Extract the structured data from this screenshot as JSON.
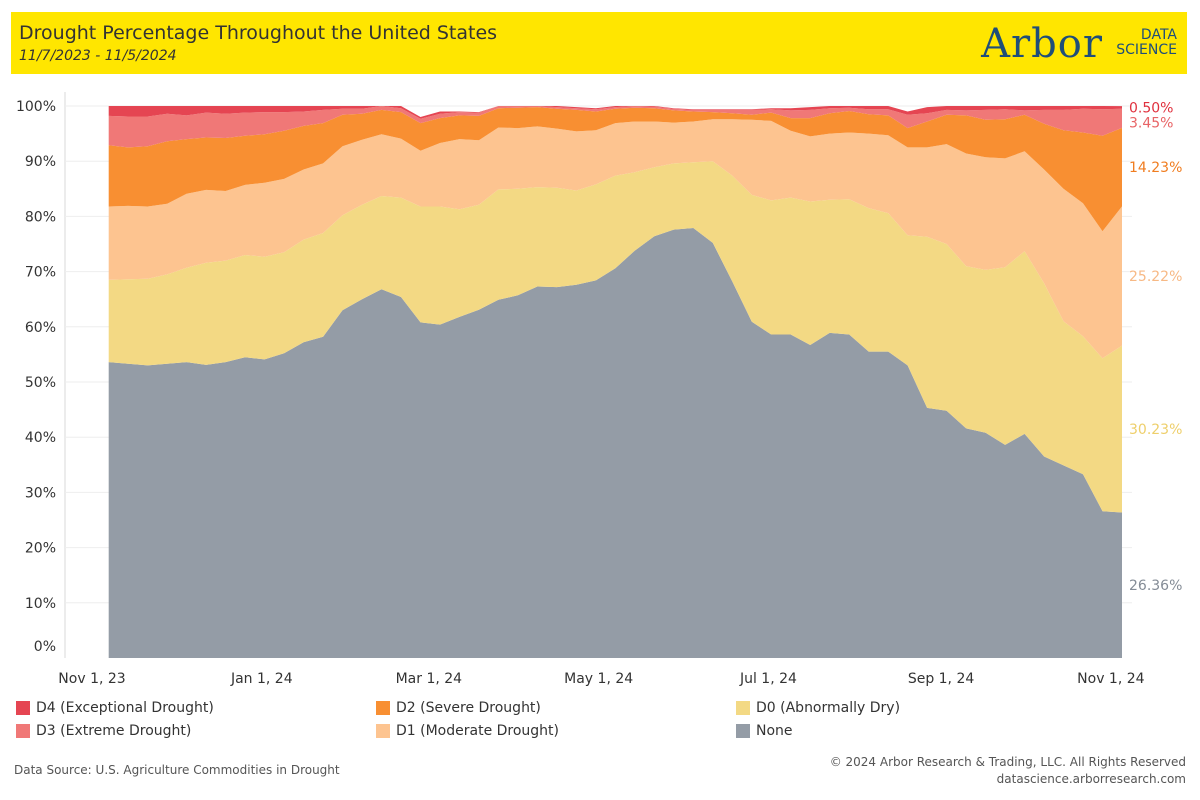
{
  "header": {
    "title": "Drought Percentage Throughout the United States",
    "subtitle": "11/7/2023 - 11/5/2024",
    "logo_main": "Arbor",
    "logo_line1": "DATA",
    "logo_line2": "SCIENCE",
    "background_color": "#ffe600"
  },
  "chart_data": {
    "type": "area",
    "stacked": true,
    "title": "Drought Percentage Throughout the United States",
    "xlabel": "",
    "ylabel": "",
    "ylim": [
      0,
      100
    ],
    "x_range": [
      "2023-11-01",
      "2024-11-05"
    ],
    "x_ticks": [
      {
        "label": "Nov 1, 23",
        "date": "2023-11-01"
      },
      {
        "label": "Jan 1, 24",
        "date": "2024-01-01"
      },
      {
        "label": "Mar 1, 24",
        "date": "2024-03-01"
      },
      {
        "label": "May 1, 24",
        "date": "2024-05-01"
      },
      {
        "label": "Jul 1, 24",
        "date": "2024-07-01"
      },
      {
        "label": "Sep 1, 24",
        "date": "2024-09-01"
      },
      {
        "label": "Nov 1, 24",
        "date": "2024-11-01"
      }
    ],
    "y_ticks": [
      "0%",
      "10%",
      "20%",
      "30%",
      "40%",
      "50%",
      "60%",
      "70%",
      "80%",
      "90%",
      "100%"
    ],
    "grid": true,
    "legend_position": "bottom",
    "x": [
      "2023-11-07",
      "2023-11-14",
      "2023-11-21",
      "2023-11-28",
      "2023-12-05",
      "2023-12-12",
      "2023-12-19",
      "2023-12-26",
      "2024-01-02",
      "2024-01-09",
      "2024-01-16",
      "2024-01-23",
      "2024-01-30",
      "2024-02-06",
      "2024-02-13",
      "2024-02-20",
      "2024-02-27",
      "2024-03-05",
      "2024-03-12",
      "2024-03-19",
      "2024-03-26",
      "2024-04-02",
      "2024-04-09",
      "2024-04-16",
      "2024-04-23",
      "2024-04-30",
      "2024-05-07",
      "2024-05-14",
      "2024-05-21",
      "2024-05-28",
      "2024-06-04",
      "2024-06-11",
      "2024-06-18",
      "2024-06-25",
      "2024-07-02",
      "2024-07-09",
      "2024-07-16",
      "2024-07-23",
      "2024-07-30",
      "2024-08-06",
      "2024-08-13",
      "2024-08-20",
      "2024-08-27",
      "2024-09-03",
      "2024-09-10",
      "2024-09-17",
      "2024-09-24",
      "2024-10-01",
      "2024-10-08",
      "2024-10-15",
      "2024-10-22",
      "2024-10-29",
      "2024-11-05"
    ],
    "series": [
      {
        "name": "None",
        "color": "#949ca6",
        "values": [
          53.6,
          53.3,
          53.0,
          53.3,
          53.6,
          53.1,
          53.6,
          54.5,
          54.1,
          55.2,
          57.2,
          58.2,
          63.0,
          65.0,
          66.8,
          65.4,
          60.8,
          60.4,
          61.8,
          63.1,
          64.9,
          65.7,
          67.3,
          67.2,
          67.6,
          68.4,
          70.6,
          73.8,
          76.4,
          77.6,
          77.9,
          75.2,
          68.2,
          60.9,
          58.6,
          58.6,
          56.7,
          58.9,
          58.6,
          55.5,
          55.5,
          53.0,
          45.3,
          44.8,
          41.6,
          40.8,
          38.6,
          40.6,
          36.5,
          34.9,
          33.3,
          26.6,
          26.36
        ]
      },
      {
        "name": "D0 (Abnormally Dry)",
        "color": "#f3d984",
        "values": [
          14.9,
          15.3,
          15.7,
          16.2,
          17.1,
          18.5,
          18.4,
          18.5,
          18.6,
          18.3,
          18.6,
          18.8,
          17.2,
          17.1,
          16.9,
          18.0,
          21.0,
          21.4,
          19.5,
          19.0,
          20.0,
          19.3,
          18.0,
          18.0,
          17.1,
          17.4,
          16.8,
          14.2,
          12.5,
          12.0,
          11.9,
          14.8,
          19.2,
          23.0,
          24.3,
          24.8,
          26.0,
          24.1,
          24.5,
          26.0,
          25.1,
          23.6,
          31.0,
          30.2,
          29.4,
          29.5,
          32.2,
          33.1,
          31.4,
          26.1,
          25.0,
          27.7,
          30.23
        ]
      },
      {
        "name": "D1 (Moderate Drought)",
        "color": "#fdc490",
        "values": [
          13.3,
          13.3,
          13.1,
          12.8,
          13.4,
          13.2,
          12.6,
          12.7,
          13.4,
          13.3,
          12.7,
          12.6,
          12.5,
          11.8,
          11.2,
          10.7,
          10.1,
          11.5,
          12.7,
          11.7,
          11.2,
          11.0,
          11.0,
          10.7,
          10.7,
          9.8,
          9.5,
          9.2,
          8.3,
          7.4,
          7.4,
          7.6,
          10.2,
          13.6,
          14.4,
          12.1,
          11.8,
          12.0,
          12.1,
          13.5,
          14.1,
          15.9,
          16.2,
          18.1,
          20.4,
          20.4,
          19.7,
          18.1,
          20.6,
          24.0,
          24.1,
          23.0,
          25.22
        ]
      },
      {
        "name": "D2 (Severe Drought)",
        "color": "#f88f32",
        "values": [
          11.1,
          10.6,
          10.9,
          11.3,
          9.9,
          9.5,
          9.6,
          8.9,
          8.8,
          8.7,
          7.9,
          7.3,
          5.7,
          4.7,
          4.4,
          4.8,
          5.0,
          4.5,
          4.3,
          4.4,
          3.5,
          3.7,
          3.5,
          3.6,
          3.9,
          3.4,
          2.6,
          2.5,
          2.4,
          2.2,
          1.8,
          1.3,
          1.1,
          0.9,
          1.5,
          2.3,
          3.3,
          3.7,
          3.9,
          3.5,
          3.6,
          3.5,
          4.7,
          5.3,
          6.9,
          6.8,
          7.1,
          6.6,
          8.3,
          10.6,
          12.8,
          17.3,
          14.23
        ]
      },
      {
        "name": "D3 (Extreme Drought)",
        "color": "#f07877",
        "values": [
          5.3,
          5.6,
          5.4,
          5.0,
          4.3,
          4.5,
          4.4,
          4.2,
          4.0,
          3.4,
          2.6,
          2.4,
          1.1,
          0.9,
          0.9,
          0.7,
          0.8,
          0.8,
          0.6,
          0.6,
          0.5,
          0.4,
          0.3,
          0.3,
          0.3,
          0.4,
          0.3,
          0.3,
          0.3,
          0.3,
          0.3,
          0.4,
          0.6,
          0.9,
          0.6,
          1.4,
          1.5,
          0.9,
          0.6,
          0.9,
          1.1,
          2.4,
          1.5,
          0.9,
          0.9,
          1.8,
          1.8,
          0.8,
          2.5,
          3.7,
          4.3,
          4.8,
          3.45
        ]
      },
      {
        "name": "D4 (Exceptional Drought)",
        "color": "#e54552",
        "values": [
          1.8,
          1.9,
          1.9,
          1.4,
          1.7,
          1.2,
          1.4,
          1.2,
          1.1,
          1.1,
          1.0,
          0.7,
          0.5,
          0.5,
          0.8,
          0.4,
          0.3,
          0.4,
          0.1,
          0.1,
          0.1,
          0.1,
          0.1,
          0.2,
          0.2,
          0.2,
          0.2,
          0.2,
          0.1,
          0.1,
          0.1,
          0.1,
          0.1,
          0.1,
          0.2,
          0.4,
          0.5,
          0.4,
          0.3,
          0.6,
          0.6,
          0.6,
          1.1,
          0.7,
          0.8,
          0.7,
          0.6,
          0.8,
          0.7,
          0.7,
          0.5,
          0.6,
          0.5
        ]
      }
    ],
    "end_labels": [
      {
        "text": "0.50%",
        "color": "#e0313e",
        "series": "D4 (Exceptional Drought)"
      },
      {
        "text": "3.45%",
        "color": "#e86466",
        "series": "D3 (Extreme Drought)"
      },
      {
        "text": "14.23%",
        "color": "#f07d20",
        "series": "D2 (Severe Drought)"
      },
      {
        "text": "25.22%",
        "color": "#f7b985",
        "series": "D1 (Moderate Drought)"
      },
      {
        "text": "30.23%",
        "color": "#eecf6b",
        "series": "D0 (Abnormally Dry)"
      },
      {
        "text": "26.36%",
        "color": "#848c96",
        "series": "None"
      }
    ]
  },
  "legend": {
    "items": [
      {
        "label": "D4 (Exceptional Drought)",
        "color": "#e54552"
      },
      {
        "label": "D3 (Extreme Drought)",
        "color": "#f07877"
      },
      {
        "label": "D2 (Severe Drought)",
        "color": "#f88f32"
      },
      {
        "label": "D1 (Moderate Drought)",
        "color": "#fdc490"
      },
      {
        "label": "D0 (Abnormally Dry)",
        "color": "#f3d984"
      },
      {
        "label": "None",
        "color": "#949ca6"
      }
    ]
  },
  "footer": {
    "source": "Data Source: U.S. Agriculture Commodities in Drought",
    "copyright": "© 2024 Arbor Research & Trading, LLC. All Rights Reserved",
    "website": "datascience.arborresearch.com"
  }
}
